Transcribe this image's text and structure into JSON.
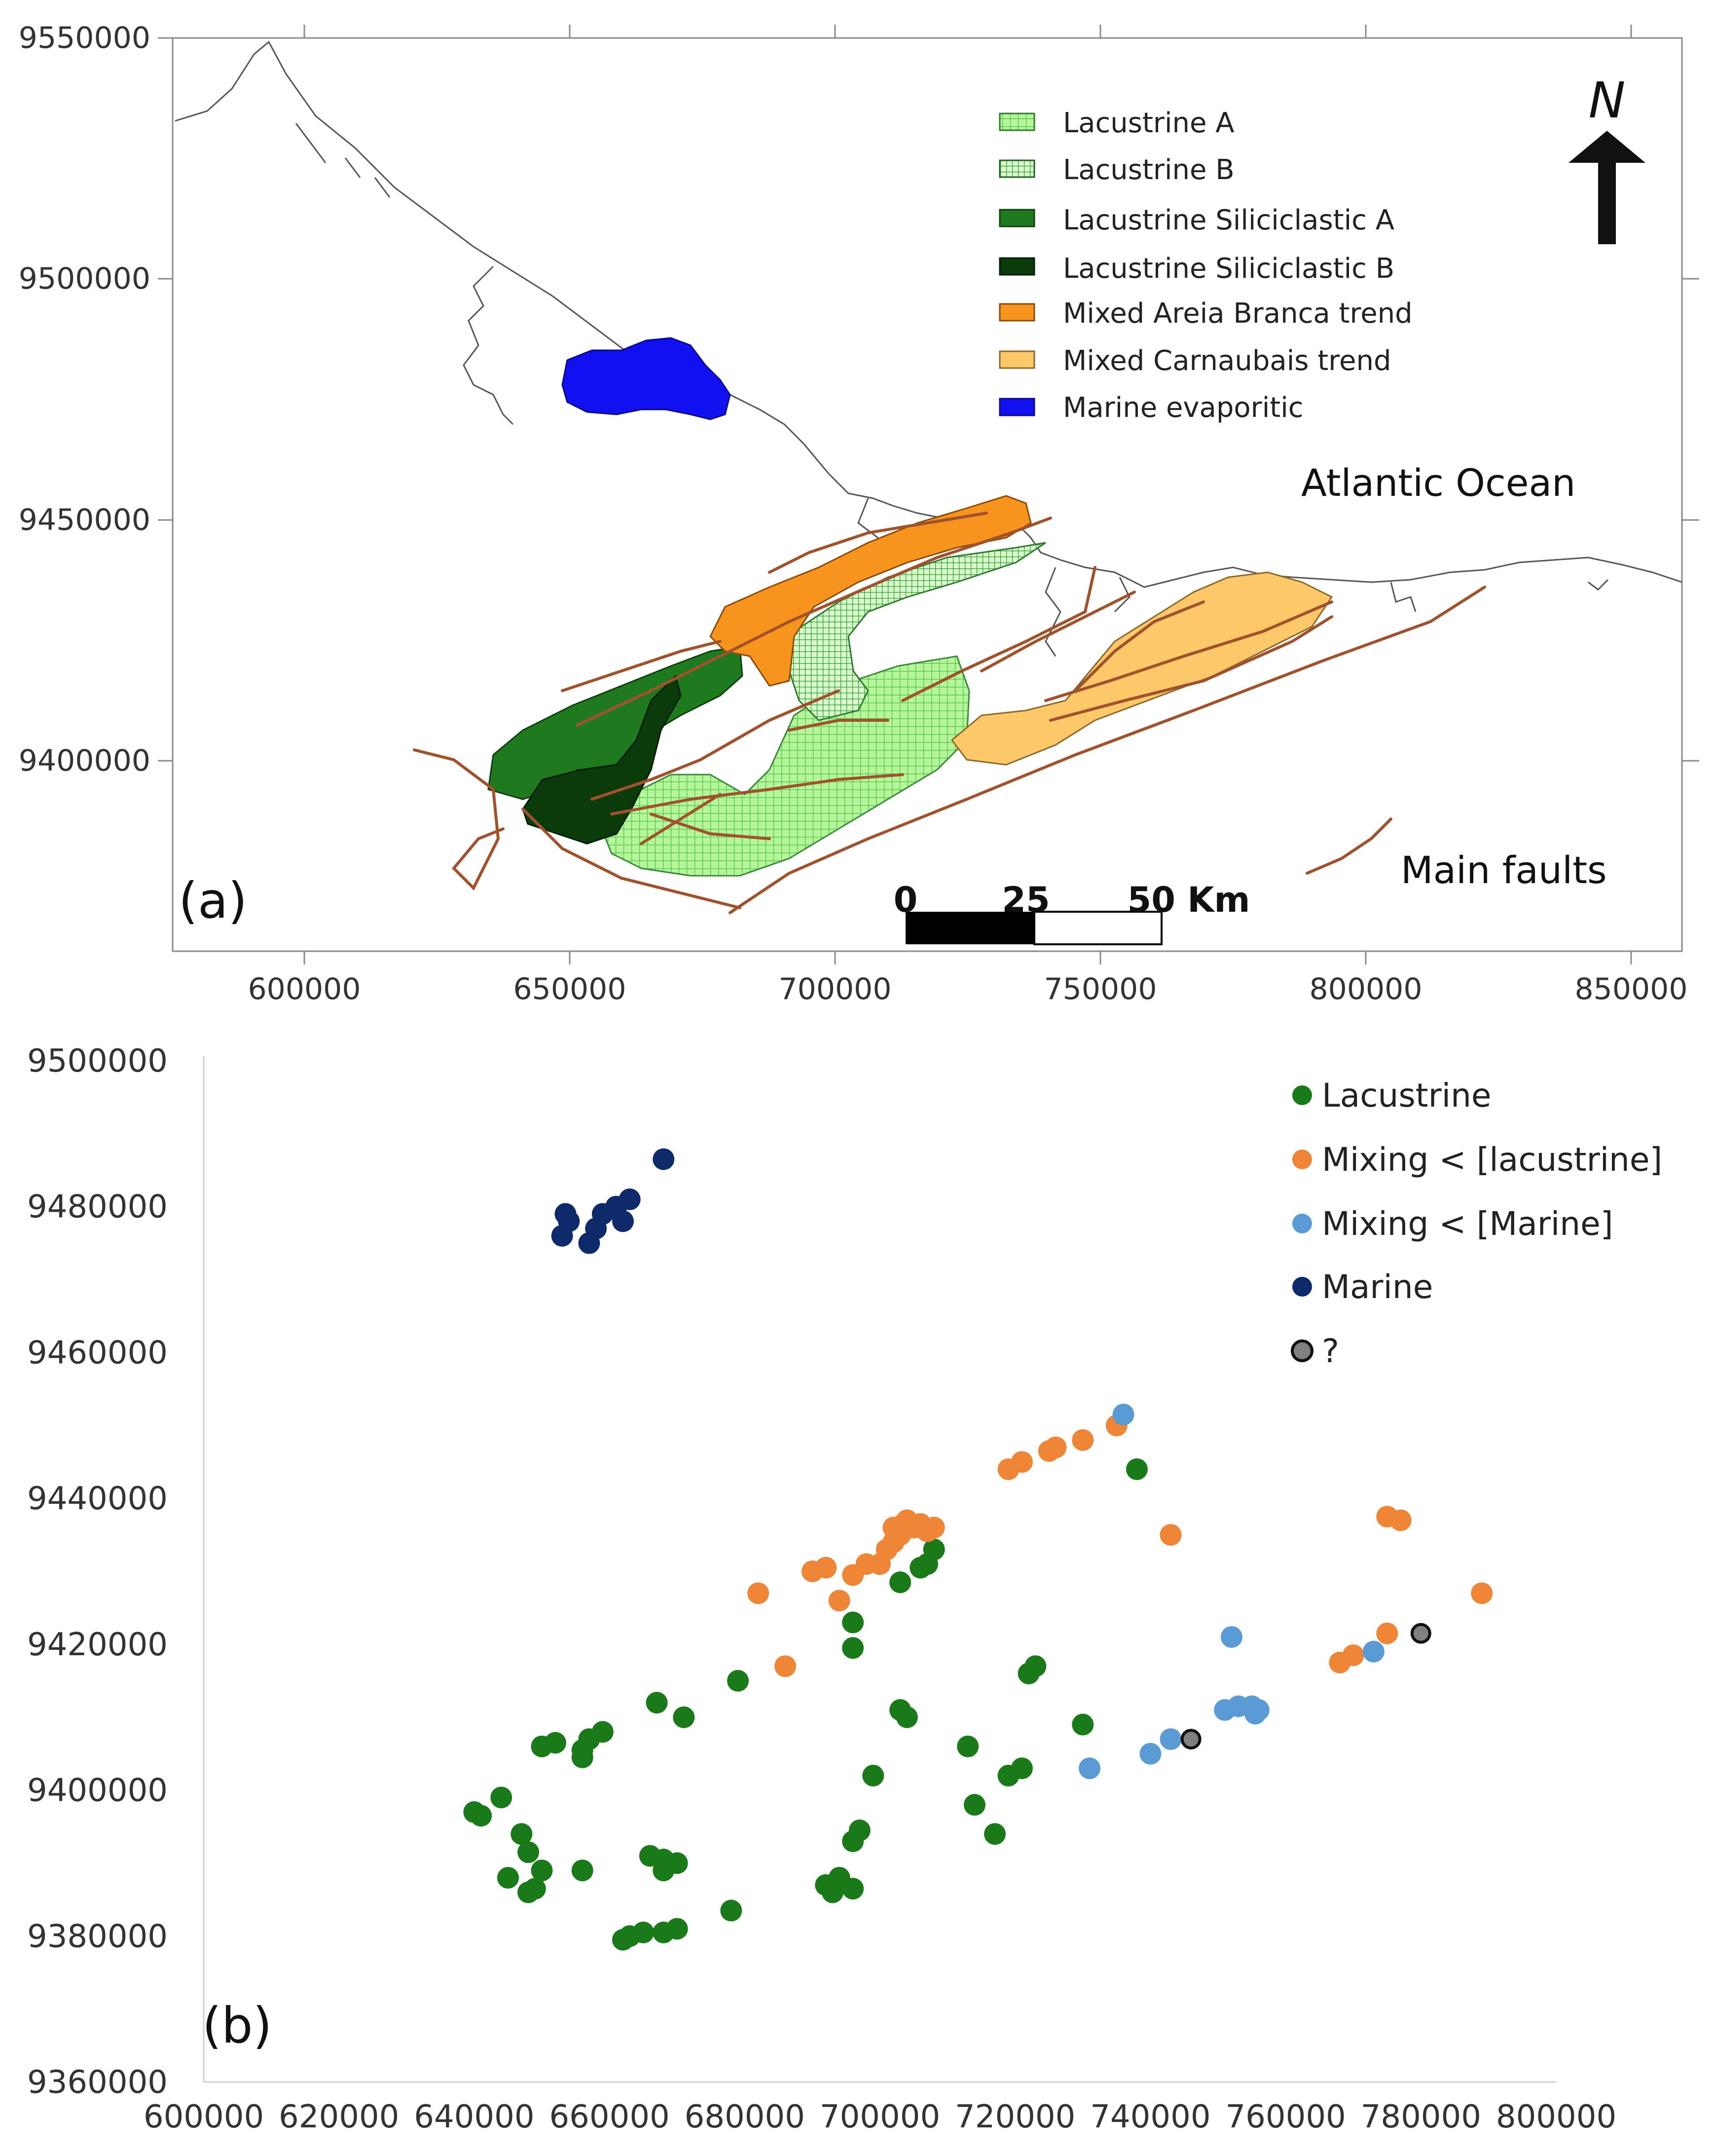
{
  "panel_a": {
    "label": "(a)",
    "north_label": "N",
    "ocean_label": "Atlantic Ocean",
    "faults_label": "Main faults",
    "scale_bar": {
      "ticks": [
        "0",
        "25",
        "50 Km"
      ]
    },
    "x_ticks": [
      "600000",
      "650000",
      "700000",
      "750000",
      "800000",
      "850000"
    ],
    "y_ticks": [
      "9550000",
      "9500000",
      "9450000",
      "9400000"
    ],
    "legend": [
      {
        "label": "Lacustrine A",
        "color": "#9ef07a",
        "pattern": "grid"
      },
      {
        "label": "Lacustrine B",
        "color": "#c6f5b0",
        "pattern": "grid-green"
      },
      {
        "label": "Lacustrine Siliciclastic A",
        "color": "#1f7a1f",
        "pattern": "solid"
      },
      {
        "label": "Lacustrine Siliciclastic B",
        "color": "#0b3b0b",
        "pattern": "solid"
      },
      {
        "label": "Mixed Areia Branca trend",
        "color": "#f7941d",
        "pattern": "solid"
      },
      {
        "label": "Mixed Carnaubais trend",
        "color": "#fcc86a",
        "pattern": "solid"
      },
      {
        "label": "Marine evaporitic",
        "color": "#1010f0",
        "pattern": "solid"
      }
    ],
    "colors": {
      "fault": "#a0522d",
      "coast": "#555555"
    }
  },
  "panel_b": {
    "label": "(b)",
    "chart_data": {
      "type": "scatter",
      "xlim": [
        600000,
        800000
      ],
      "ylim": [
        9360000,
        9500000
      ],
      "x_ticks": [
        "600000",
        "620000",
        "640000",
        "660000",
        "680000",
        "700000",
        "720000",
        "740000",
        "760000",
        "780000",
        "800000"
      ],
      "y_ticks": [
        "9500000",
        "9480000",
        "9460000",
        "9440000",
        "9420000",
        "9400000",
        "9380000",
        "9360000"
      ],
      "series": [
        {
          "name": "Lacustrine",
          "color": "#1a7a1a",
          "points": [
            [
              640000,
              9397000
            ],
            [
              641000,
              9396500
            ],
            [
              644000,
              9399000
            ],
            [
              647000,
              9394000
            ],
            [
              648000,
              9391500
            ],
            [
              650000,
              9389000
            ],
            [
              648000,
              9386000
            ],
            [
              649000,
              9386500
            ],
            [
              645000,
              9388000
            ],
            [
              656000,
              9389000
            ],
            [
              650000,
              9406000
            ],
            [
              652000,
              9406500
            ],
            [
              656000,
              9405500
            ],
            [
              657000,
              9407000
            ],
            [
              659000,
              9408000
            ],
            [
              656000,
              9404500
            ],
            [
              667000,
              9412000
            ],
            [
              671000,
              9410000
            ],
            [
              666000,
              9391000
            ],
            [
              668000,
              9390500
            ],
            [
              670000,
              9390000
            ],
            [
              668000,
              9389000
            ],
            [
              663000,
              9380000
            ],
            [
              665000,
              9380500
            ],
            [
              668000,
              9380500
            ],
            [
              670000,
              9381000
            ],
            [
              662000,
              9379500
            ],
            [
              678000,
              9383500
            ],
            [
              679000,
              9415000
            ],
            [
              696000,
              9423000
            ],
            [
              696000,
              9419500
            ],
            [
              703000,
              9411000
            ],
            [
              704000,
              9410000
            ],
            [
              708000,
              9433000
            ],
            [
              707000,
              9431000
            ],
            [
              706000,
              9430500
            ],
            [
              703000,
              9428500
            ],
            [
              697000,
              9394500
            ],
            [
              696000,
              9393000
            ],
            [
              694000,
              9388000
            ],
            [
              692000,
              9387000
            ],
            [
              693000,
              9386000
            ],
            [
              696000,
              9386500
            ],
            [
              699000,
              9402000
            ],
            [
              713000,
              9406000
            ],
            [
              714000,
              9398000
            ],
            [
              717000,
              9394000
            ],
            [
              719000,
              9402000
            ],
            [
              721000,
              9403000
            ],
            [
              722000,
              9416000
            ],
            [
              723000,
              9417000
            ],
            [
              730000,
              9409000
            ],
            [
              738000,
              9444000
            ]
          ]
        },
        {
          "name": "Mixing < [lacustrine]",
          "color": "#ef8537",
          "points": [
            [
              682000,
              9427000
            ],
            [
              686000,
              9417000
            ],
            [
              690000,
              9430000
            ],
            [
              692000,
              9430500
            ],
            [
              694000,
              9426000
            ],
            [
              696000,
              9429500
            ],
            [
              698000,
              9431000
            ],
            [
              700000,
              9431000
            ],
            [
              701000,
              9433000
            ],
            [
              702000,
              9434000
            ],
            [
              703000,
              9435000
            ],
            [
              703500,
              9436500
            ],
            [
              704000,
              9437000
            ],
            [
              705000,
              9436000
            ],
            [
              706000,
              9436500
            ],
            [
              707000,
              9435500
            ],
            [
              708000,
              9436000
            ],
            [
              702000,
              9436000
            ],
            [
              719000,
              9444000
            ],
            [
              721000,
              9445000
            ],
            [
              725000,
              9446500
            ],
            [
              726000,
              9447000
            ],
            [
              730000,
              9448000
            ],
            [
              735000,
              9450000
            ],
            [
              743000,
              9435000
            ],
            [
              768000,
              9417500
            ],
            [
              770000,
              9418500
            ],
            [
              775000,
              9421500
            ],
            [
              775000,
              9437500
            ],
            [
              777000,
              9437000
            ],
            [
              789000,
              9427000
            ]
          ]
        },
        {
          "name": "Mixing < [Marine]",
          "color": "#5b9bd5",
          "points": [
            [
              731000,
              9403000
            ],
            [
              736000,
              9451500
            ],
            [
              740000,
              9405000
            ],
            [
              743000,
              9407000
            ],
            [
              751000,
              9411000
            ],
            [
              752000,
              9421000
            ],
            [
              753000,
              9411500
            ],
            [
              755000,
              9411500
            ],
            [
              755500,
              9410500
            ],
            [
              756000,
              9411000
            ],
            [
              773000,
              9419000
            ]
          ]
        },
        {
          "name": "Marine",
          "color": "#0e2a6b",
          "points": [
            [
              653000,
              9476000
            ],
            [
              653500,
              9479000
            ],
            [
              654000,
              9478000
            ],
            [
              657000,
              9475000
            ],
            [
              658000,
              9477000
            ],
            [
              659000,
              9479000
            ],
            [
              661000,
              9480000
            ],
            [
              662000,
              9478000
            ],
            [
              663000,
              9481000
            ],
            [
              668000,
              9486500
            ]
          ]
        },
        {
          "name": "?",
          "color": "#808080",
          "points": [
            [
              746000,
              9407000
            ],
            [
              780000,
              9421500
            ]
          ]
        }
      ]
    }
  }
}
